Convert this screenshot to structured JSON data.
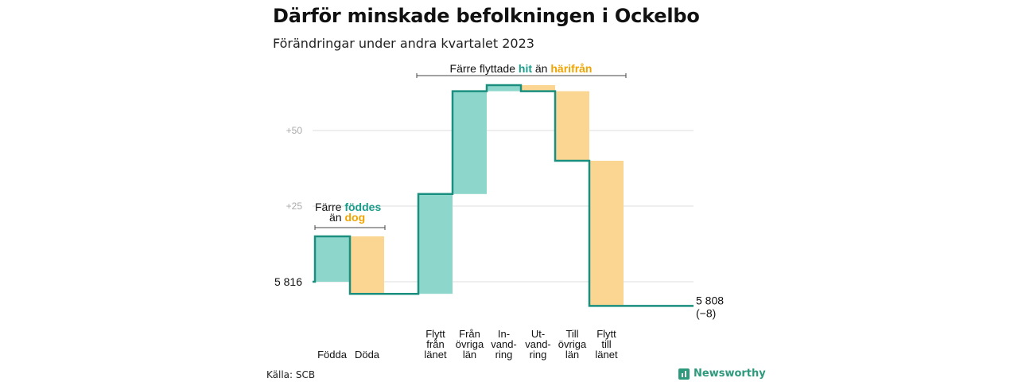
{
  "title": "Därför minskade befolkningen i Ockelbo",
  "subtitle": "Förändringar under andra kvartalet 2023",
  "source": "Källa: SCB",
  "brand": {
    "name": "Newsworthy",
    "icon": "newsworthy-logo-icon"
  },
  "colors": {
    "increase": "#8dd6cb",
    "decrease": "#fad692",
    "line": "#1a8f7f",
    "green_text": "#1a9c8a",
    "orange_text": "#f0a400",
    "grid": "#dddddd"
  },
  "annotations": {
    "births": {
      "part1": "Färre ",
      "part2": "föddes",
      "part3": "än ",
      "part4": "dog"
    },
    "migration": {
      "part1": "Färre flyttade ",
      "part2": "hit",
      "part3": " än ",
      "part4": "härifrån"
    }
  },
  "chart_data": {
    "type": "waterfall",
    "start": {
      "label": "5 816",
      "value": 5816
    },
    "end": {
      "label": "5 808",
      "change_label": "(−8)",
      "value": 5808
    },
    "y_ticks": [
      {
        "label": "+25",
        "value": 25
      },
      {
        "label": "+50",
        "value": 50
      }
    ],
    "steps": [
      {
        "label_lines": [
          "Födda"
        ],
        "value": 15,
        "kind": "increase"
      },
      {
        "label_lines": [
          "Döda"
        ],
        "value": -19,
        "kind": "decrease"
      },
      {
        "label_lines": [
          "Flytt",
          "från",
          "länet"
        ],
        "value": 33,
        "kind": "increase"
      },
      {
        "label_lines": [
          "Från",
          "övriga",
          "län"
        ],
        "value": 34,
        "kind": "increase"
      },
      {
        "label_lines": [
          "In-",
          "vand-",
          "ring"
        ],
        "value": 2,
        "kind": "increase"
      },
      {
        "label_lines": [
          "Ut-",
          "vand-",
          "ring"
        ],
        "value": -2,
        "kind": "decrease"
      },
      {
        "label_lines": [
          "Till",
          "övriga",
          "län"
        ],
        "value": -23,
        "kind": "decrease"
      },
      {
        "label_lines": [
          "Flytt",
          "till",
          "länet"
        ],
        "value": -48,
        "kind": "decrease"
      }
    ]
  }
}
